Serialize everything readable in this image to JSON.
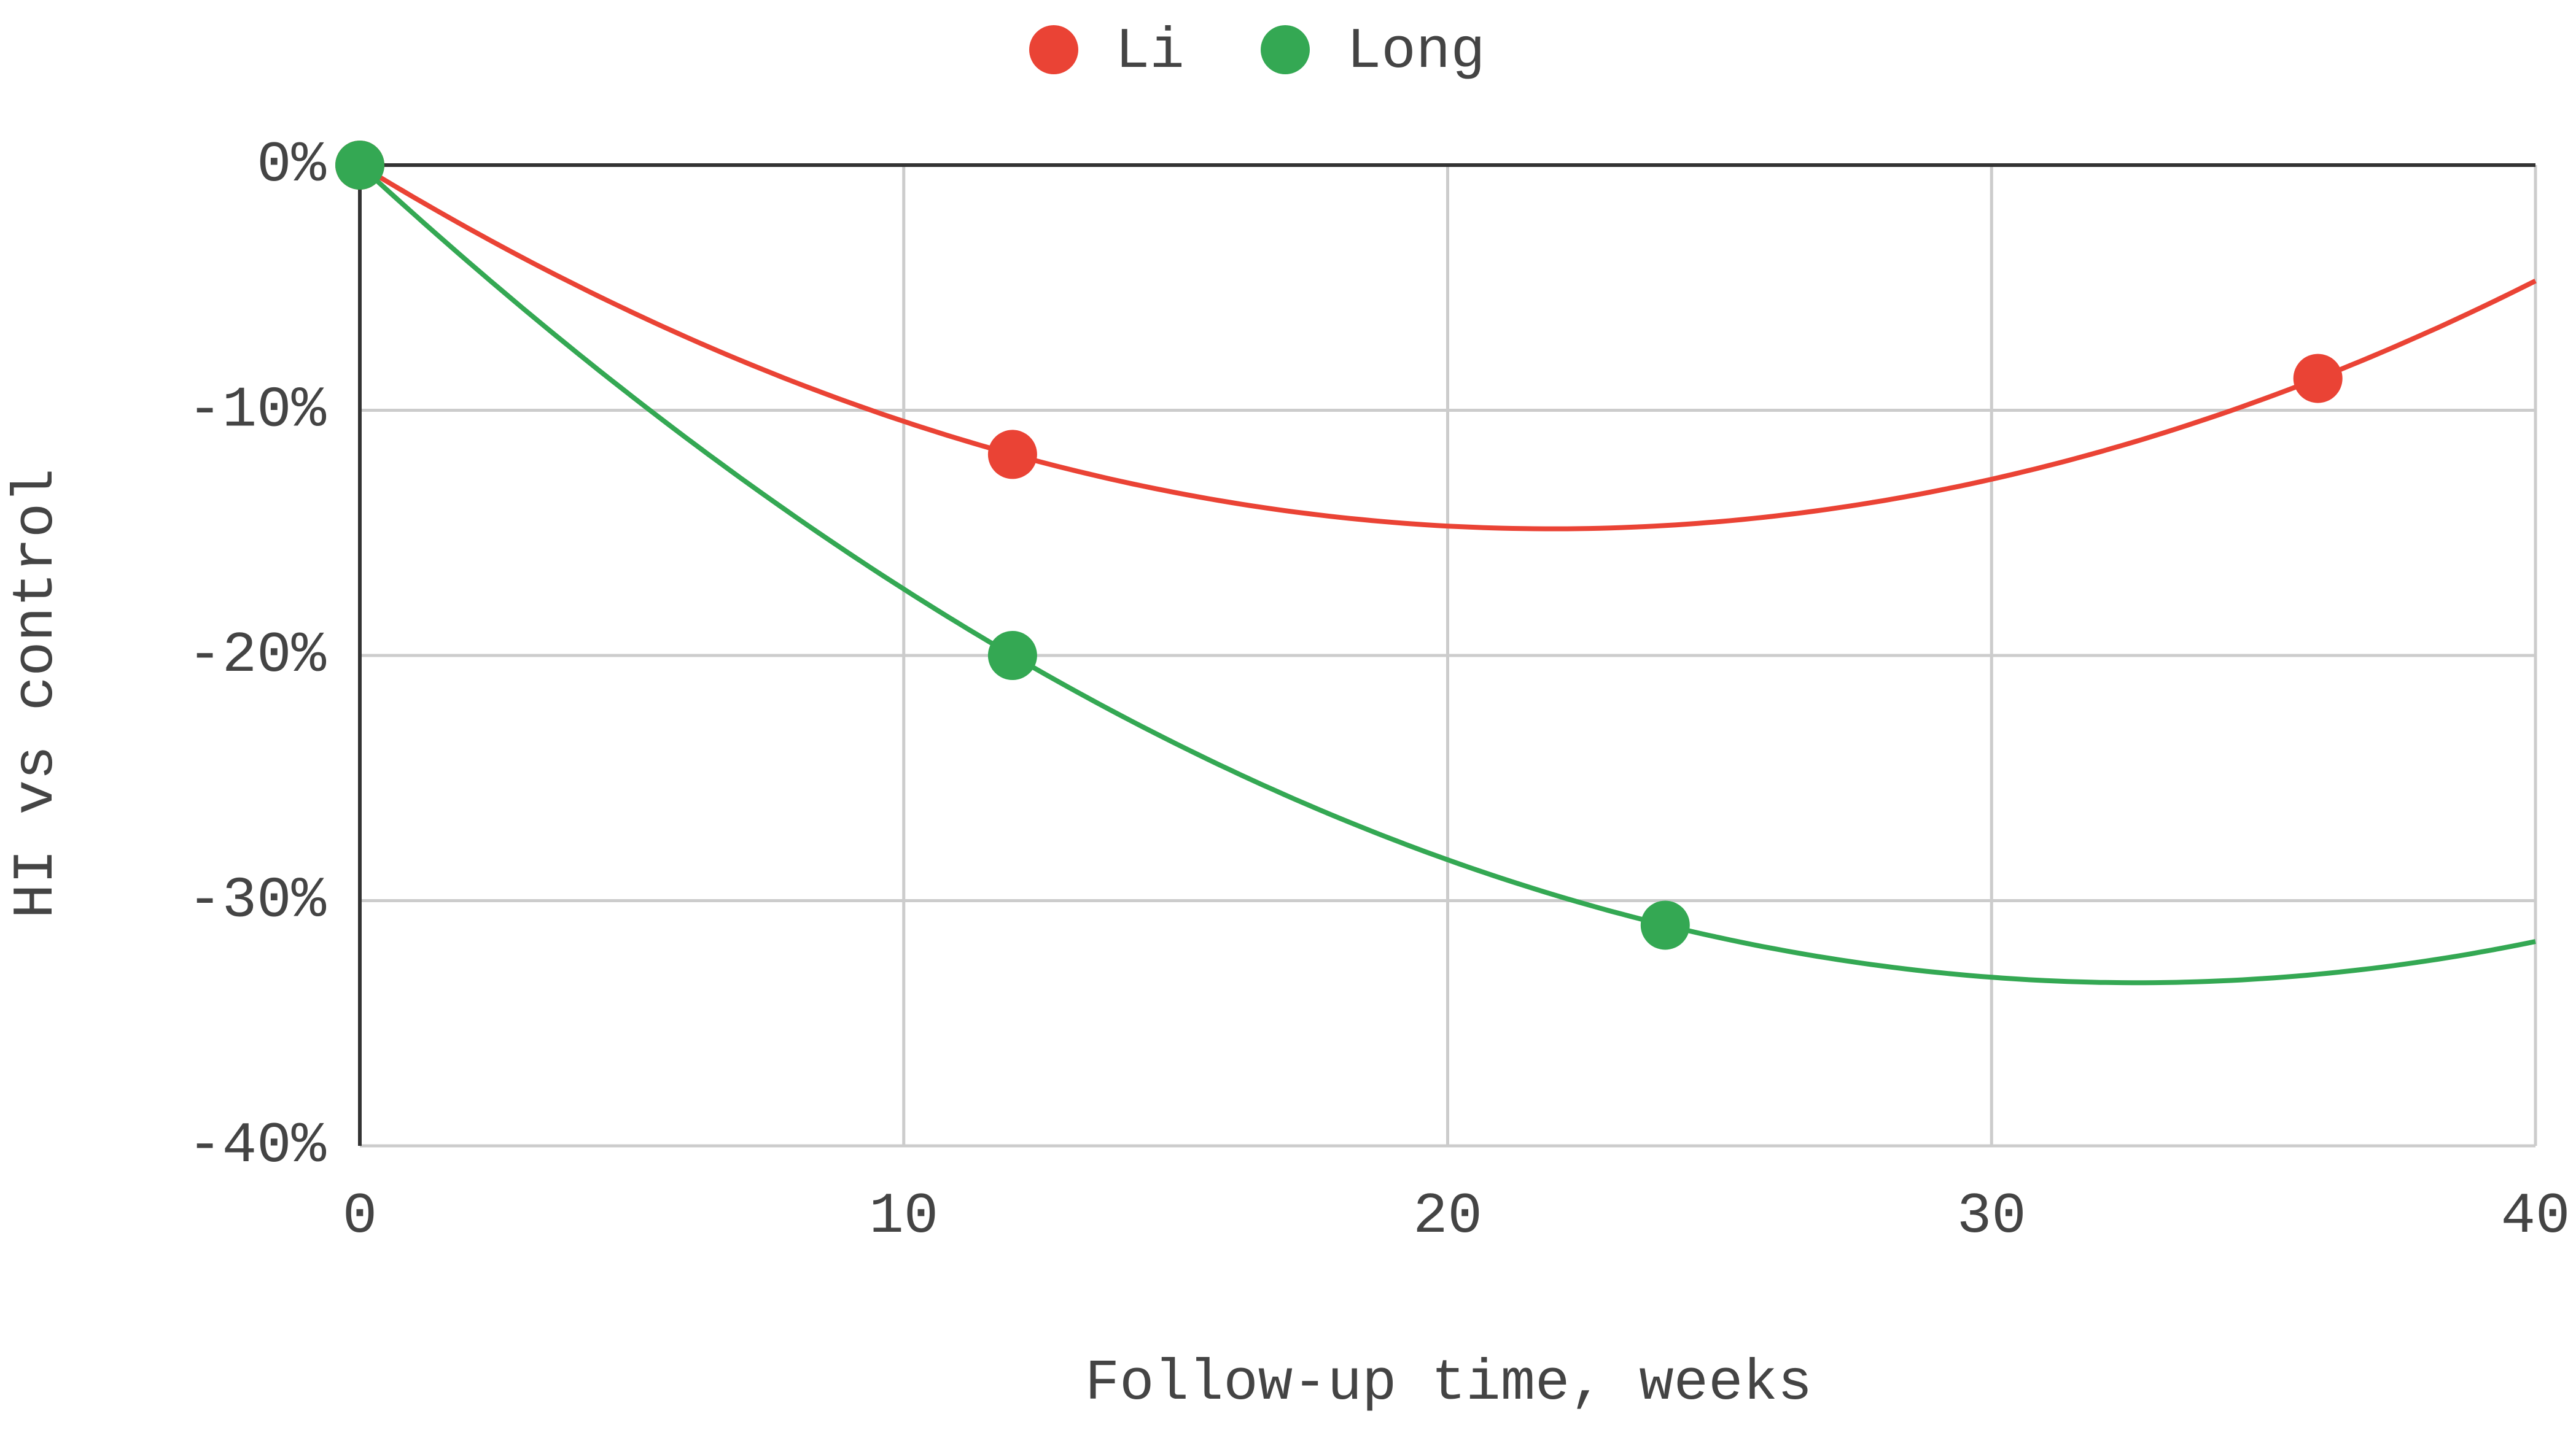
{
  "chart_data": {
    "type": "scatter",
    "trendline": "polynomial",
    "trendline_degree": 2,
    "x_label": "Follow-up time, weeks",
    "y_label": "HI vs control",
    "series": [
      {
        "name": "Li",
        "color": "#ea4335",
        "x": [
          0,
          12,
          36
        ],
        "values": [
          0,
          -11.8,
          -8.7
        ]
      },
      {
        "name": "Long",
        "color": "#34a853",
        "x": [
          0,
          12,
          24
        ],
        "values": [
          0,
          -20,
          -31
        ]
      }
    ],
    "xlim": [
      0,
      40
    ],
    "xticks": [
      0,
      10,
      20,
      30,
      40
    ],
    "ylim": [
      -40,
      0
    ],
    "yticks": [
      {
        "value": 0,
        "label": "0%"
      },
      {
        "value": -10,
        "label": "-10%"
      },
      {
        "value": -20,
        "label": "-20%"
      },
      {
        "value": -30,
        "label": "-30%"
      },
      {
        "value": -40,
        "label": "-40%"
      }
    ],
    "grid": true,
    "legend": "top"
  }
}
